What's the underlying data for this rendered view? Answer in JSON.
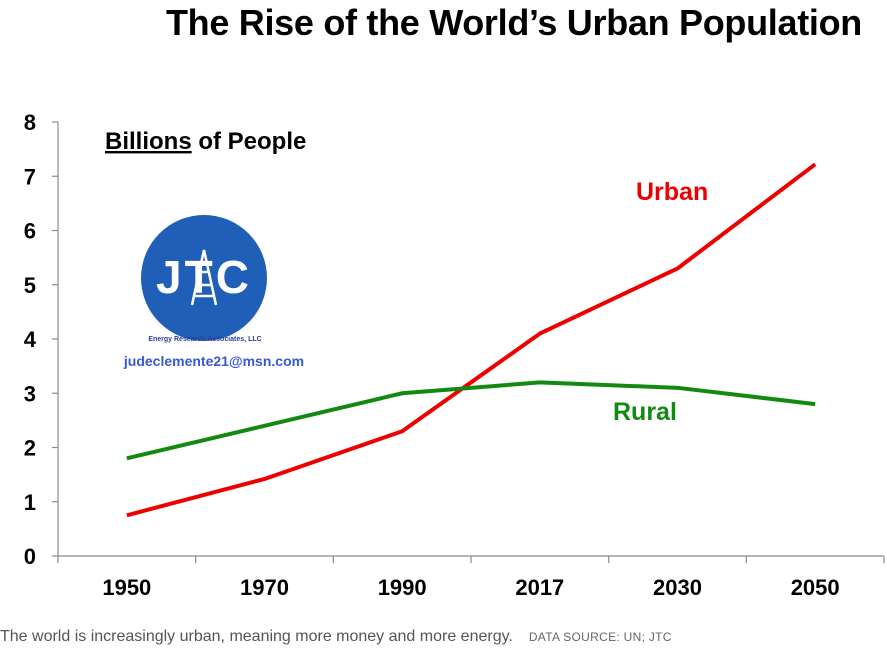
{
  "chart_data": {
    "type": "line",
    "title": "The Rise of the World’s Urban Population",
    "units_label_underlined": "Billions",
    "units_label_rest": " of People",
    "categories": [
      "1950",
      "1970",
      "1990",
      "2017",
      "2030",
      "2050"
    ],
    "ylim": [
      0,
      8
    ],
    "yticks": [
      "0",
      "1",
      "2",
      "3",
      "4",
      "5",
      "6",
      "7",
      "8"
    ],
    "series": [
      {
        "name": "Urban",
        "color": "#ee0000",
        "values": [
          0.75,
          1.42,
          2.3,
          4.1,
          5.3,
          7.22
        ]
      },
      {
        "name": "Rural",
        "color": "#128a12",
        "values": [
          1.8,
          2.4,
          3.0,
          3.2,
          3.1,
          2.8
        ]
      }
    ],
    "grid": false,
    "legend": "inline labels"
  },
  "logo": {
    "text": "JTC",
    "tagline": "Energy Research Associates, LLC",
    "email": "judeclemente21@msn.com",
    "color": "#1f5fb8"
  },
  "caption": {
    "text": "The world is increasingly urban, meaning more money and more energy.",
    "source": "DATA SOURCE: UN; JTC"
  }
}
